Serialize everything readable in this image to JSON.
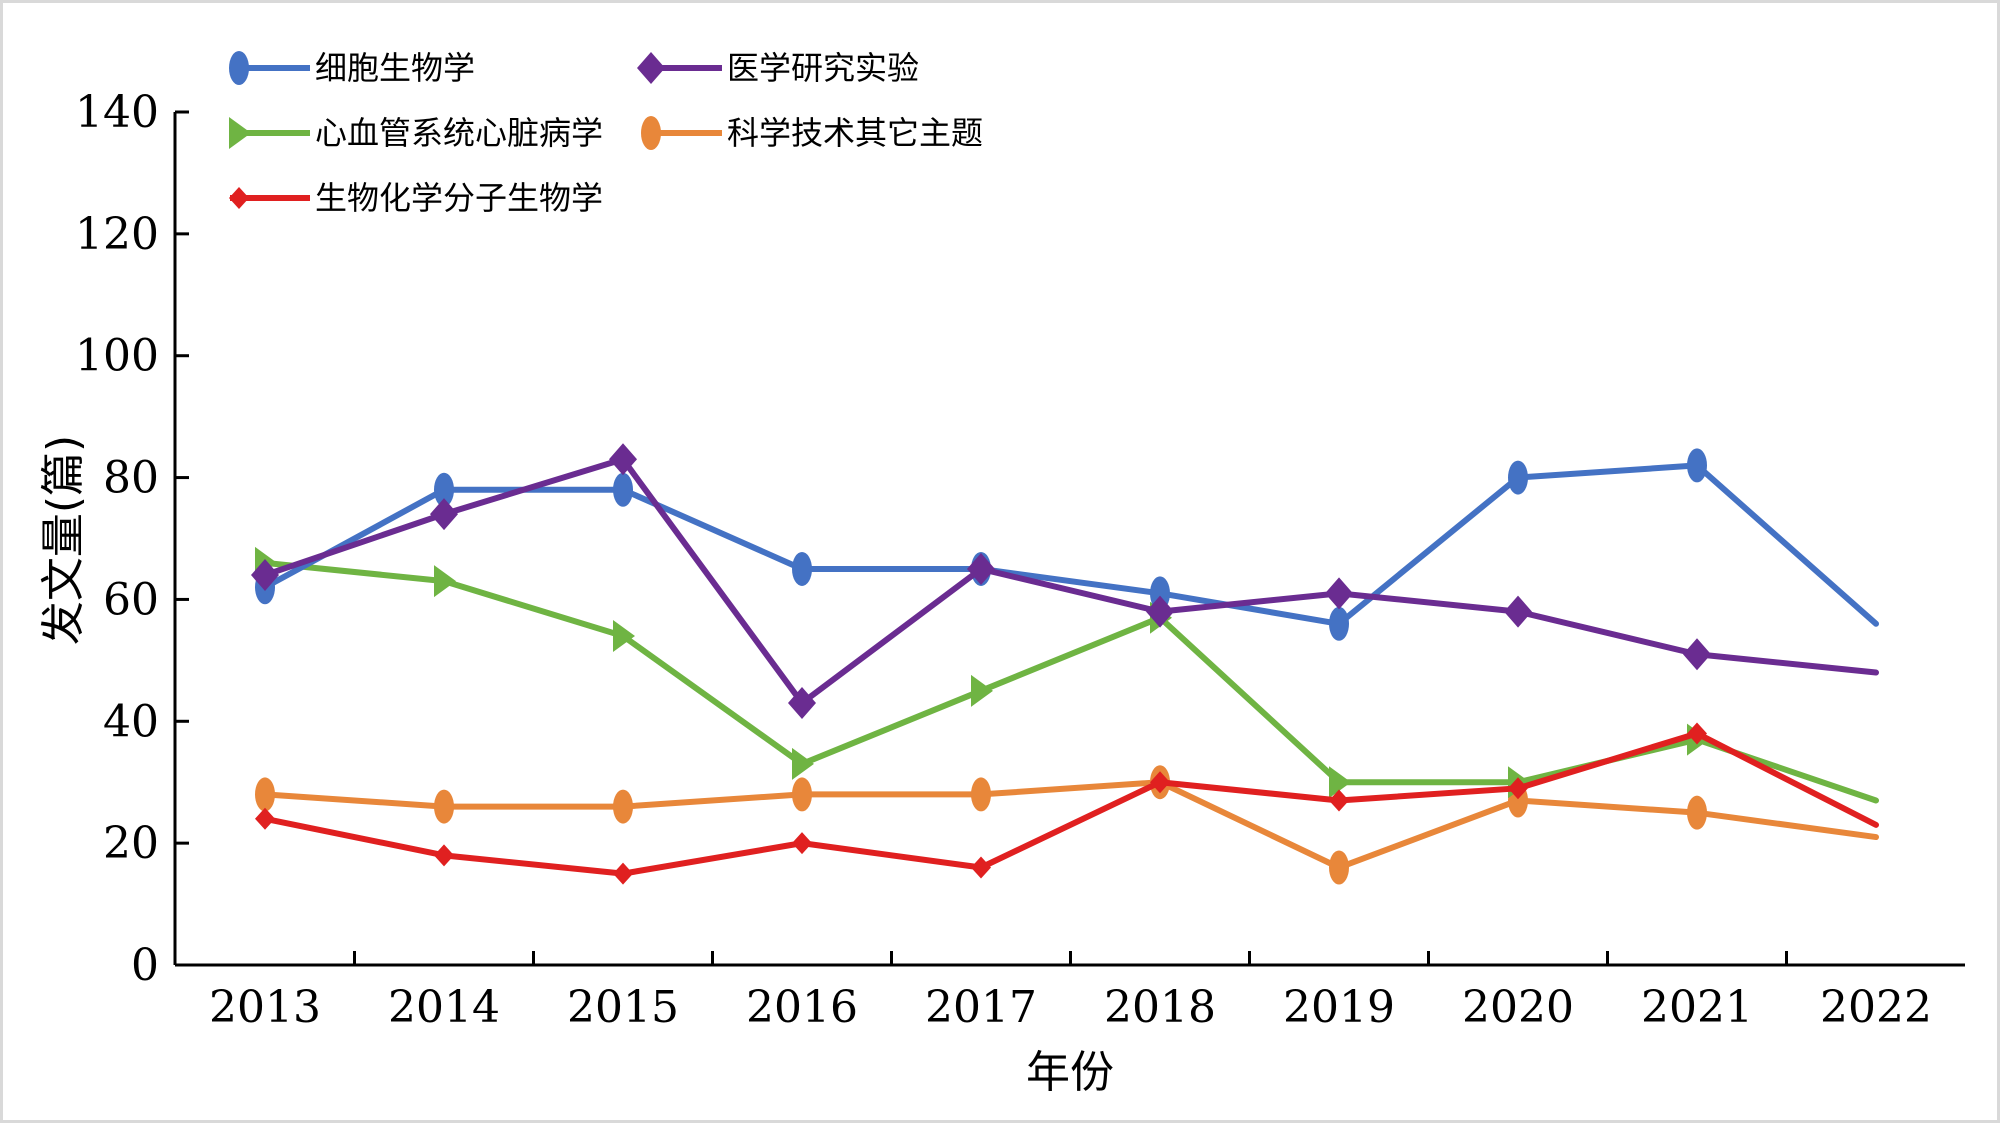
{
  "chart_data": {
    "type": "line",
    "title": "",
    "xlabel": "年份",
    "ylabel": "发文量(篇)",
    "ylim": [
      0,
      140
    ],
    "yticks": [
      0,
      20,
      40,
      60,
      80,
      100,
      120,
      140
    ],
    "categories": [
      "2013",
      "2014",
      "2015",
      "2016",
      "2017",
      "2018",
      "2019",
      "2020",
      "2021",
      "2022"
    ],
    "legend_position": "top-left",
    "series": [
      {
        "name": "细胞生物学",
        "color": "#4472c4",
        "marker": "ellipse",
        "values": [
          62,
          78,
          78,
          65,
          65,
          61,
          56,
          80,
          82,
          56
        ]
      },
      {
        "name": "医学研究实验",
        "color": "#6a2c91",
        "marker": "diamond",
        "values": [
          64,
          74,
          83,
          43,
          65,
          58,
          61,
          58,
          51,
          48
        ]
      },
      {
        "name": "心血管系统心脏病学",
        "color": "#6fb443",
        "marker": "triangle",
        "values": [
          66,
          63,
          54,
          33,
          45,
          57,
          30,
          30,
          37,
          27
        ]
      },
      {
        "name": "科学技术其它主题",
        "color": "#e8873a",
        "marker": "ellipse",
        "values": [
          28,
          26,
          26,
          28,
          28,
          30,
          16,
          27,
          25,
          21
        ]
      },
      {
        "name": "生物化学分子生物学",
        "color": "#e02020",
        "marker": "small-diamond",
        "values": [
          24,
          18,
          15,
          20,
          16,
          30,
          27,
          29,
          38,
          23
        ]
      }
    ]
  }
}
